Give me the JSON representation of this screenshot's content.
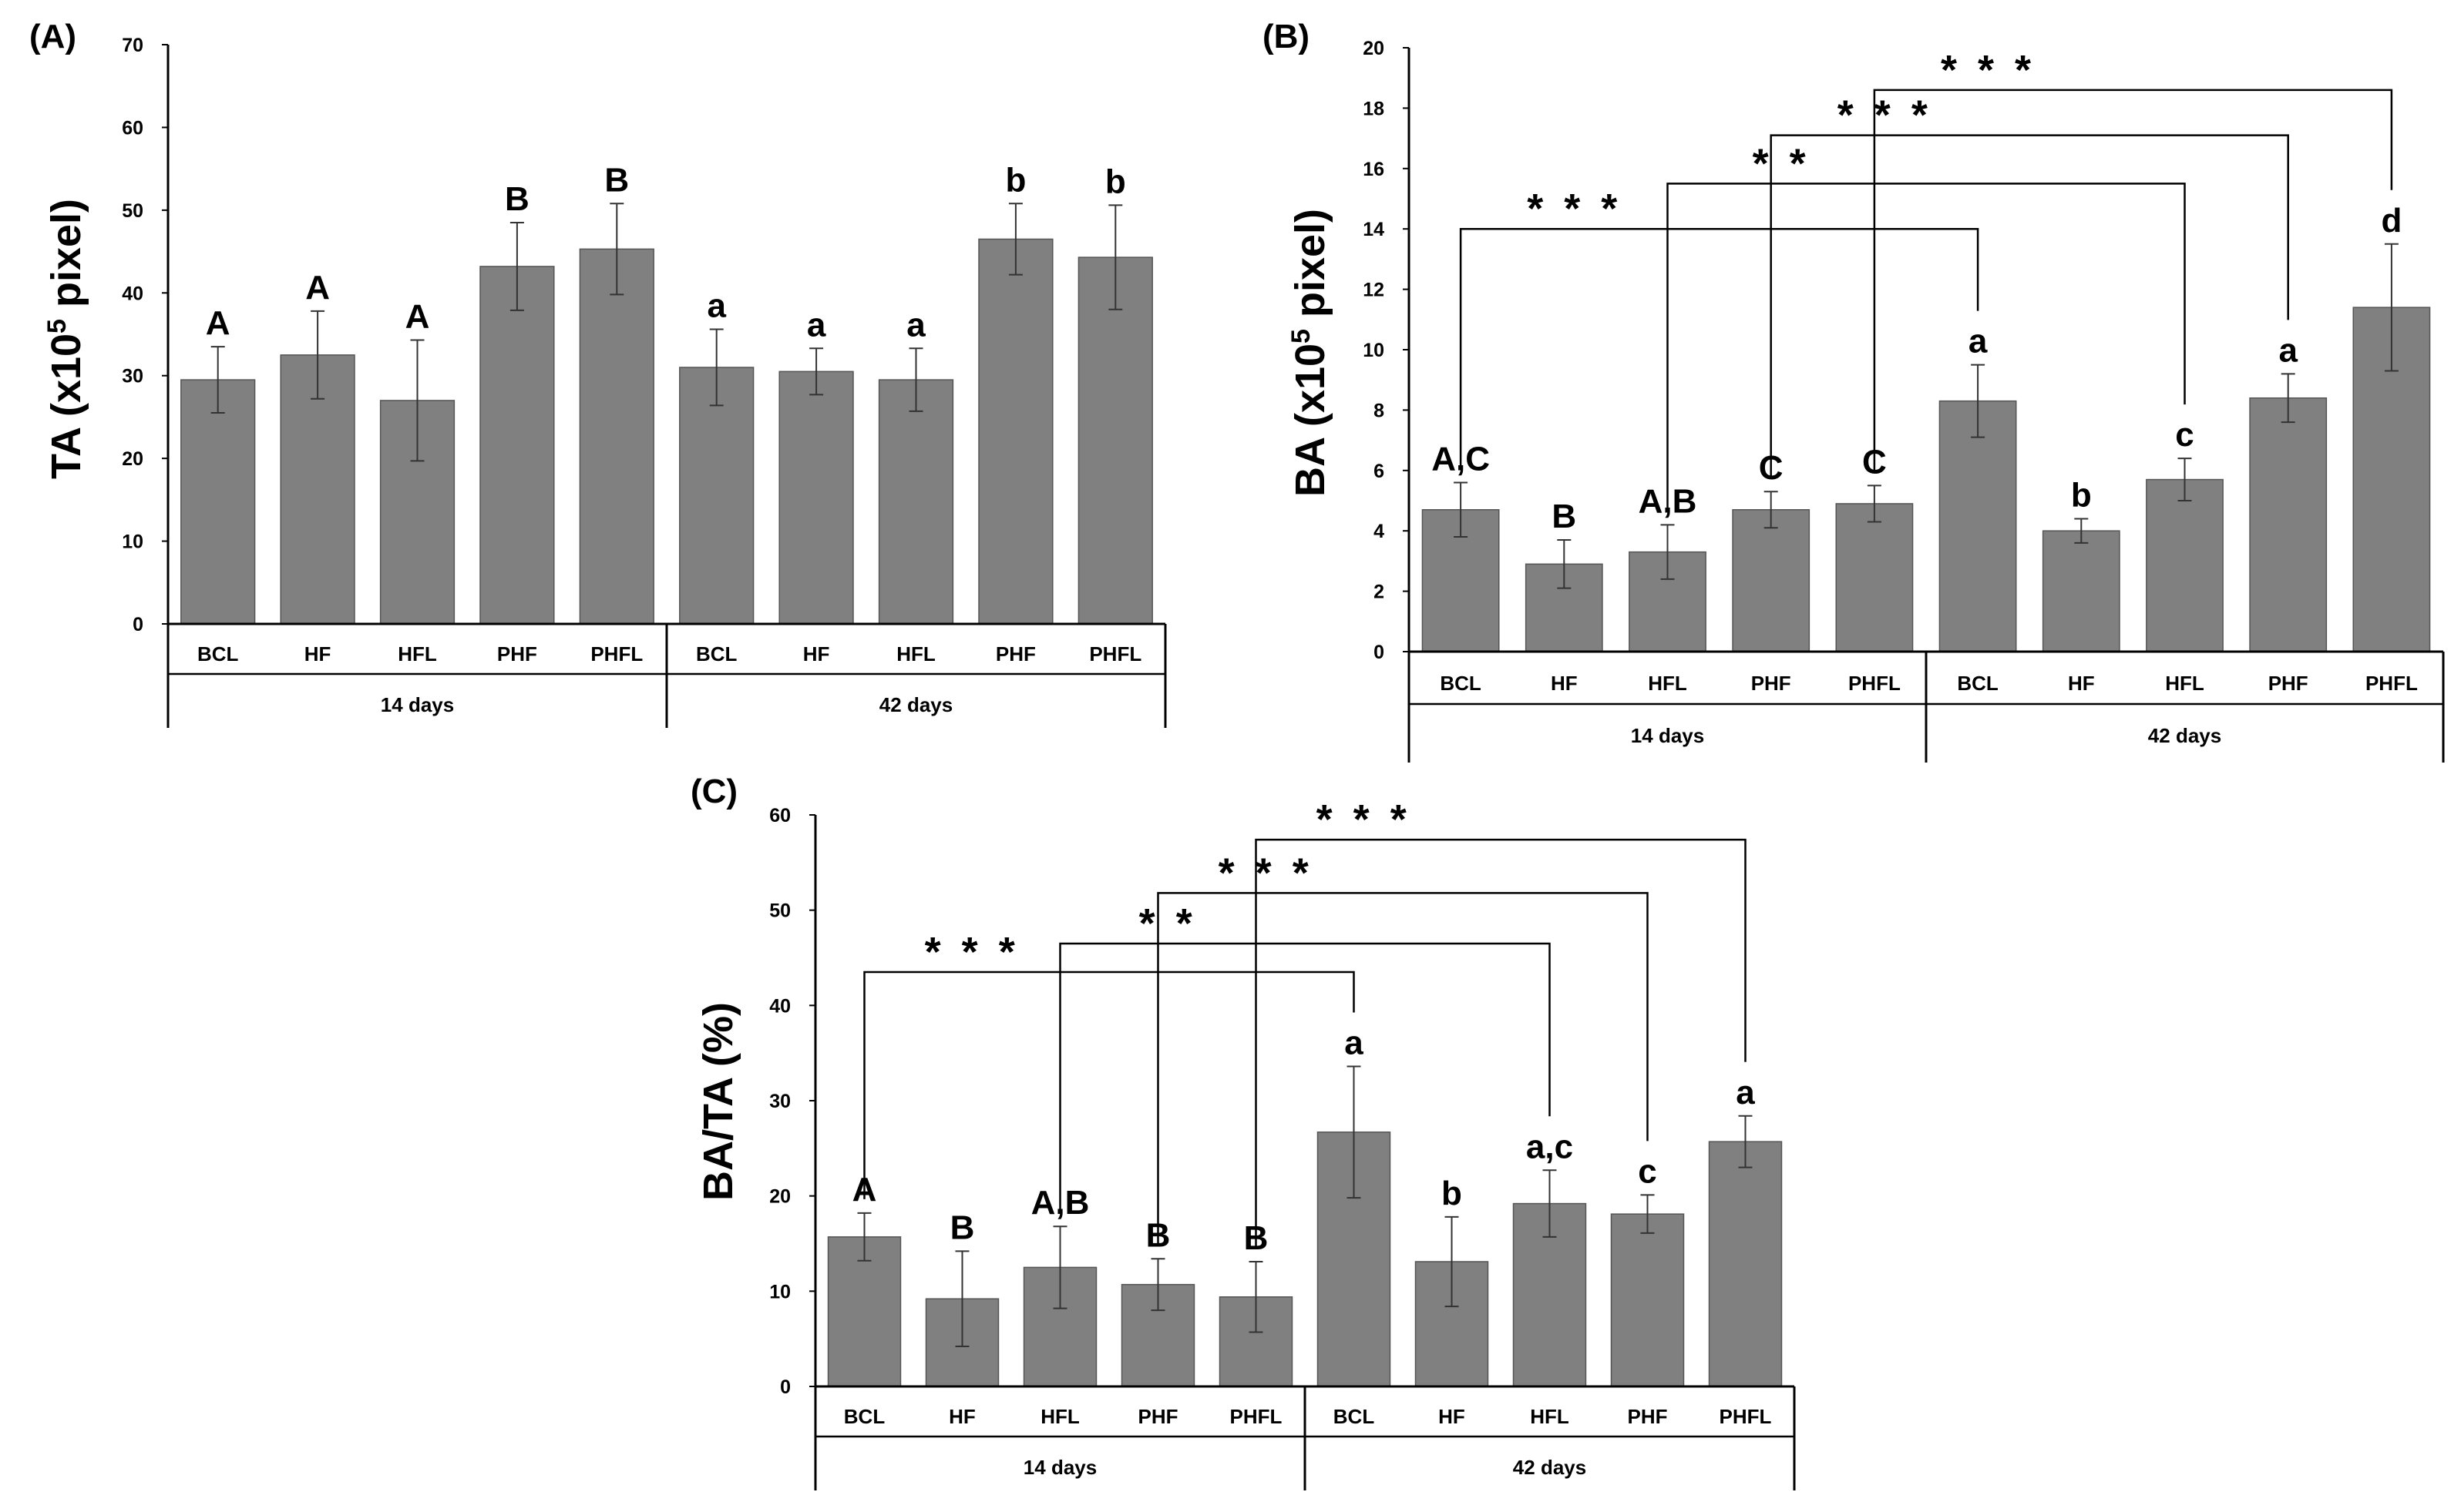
{
  "chart_data": [
    {
      "type": "bar",
      "panel": "(A)",
      "ylabel": "TA (x10",
      "ylabel_sup": "5",
      "ylabel_tail": " pixel)",
      "ylim": [
        0,
        70
      ],
      "yticks": [
        0,
        10,
        20,
        30,
        40,
        50,
        60,
        70
      ],
      "groups": [
        {
          "name": "14 days",
          "categories": [
            "BCL",
            "HF",
            "HFL",
            "PHF",
            "PHFL"
          ]
        },
        {
          "name": "42 days",
          "categories": [
            "BCL",
            "HF",
            "HFL",
            "PHF",
            "PHFL"
          ]
        }
      ],
      "values": [
        29.5,
        32.5,
        27,
        43.2,
        45.3,
        31,
        30.5,
        29.5,
        46.5,
        44.3
      ],
      "errors": [
        4,
        5.3,
        7.3,
        5.3,
        5.5,
        4.6,
        2.8,
        3.8,
        4.3,
        6.3
      ],
      "labels": [
        "A",
        "A",
        "A",
        "B",
        "B",
        "a",
        "a",
        "a",
        "b",
        "b"
      ],
      "brackets": [],
      "colors": {
        "bar": "#808080",
        "bar_edge": "#555555",
        "axis": "#000000"
      }
    },
    {
      "type": "bar",
      "panel": "(B)",
      "ylabel": "BA (x10",
      "ylabel_sup": "5",
      "ylabel_tail": " pixel)",
      "ylim": [
        0,
        20
      ],
      "yticks": [
        0,
        2,
        4,
        6,
        8,
        10,
        12,
        14,
        16,
        18,
        20
      ],
      "groups": [
        {
          "name": "14 days",
          "categories": [
            "BCL",
            "HF",
            "HFL",
            "PHF",
            "PHFL"
          ]
        },
        {
          "name": "42 days",
          "categories": [
            "BCL",
            "HF",
            "HFL",
            "PHF",
            "PHFL"
          ]
        }
      ],
      "values": [
        4.7,
        2.9,
        3.3,
        4.7,
        4.9,
        8.3,
        4.0,
        5.7,
        8.4,
        11.4
      ],
      "errors": [
        0.9,
        0.8,
        0.9,
        0.6,
        0.6,
        1.2,
        0.4,
        0.7,
        0.8,
        2.1
      ],
      "labels": [
        "A,C",
        "B",
        "A,B",
        "C",
        "C",
        "a",
        "b",
        "c",
        "a",
        "d"
      ],
      "brackets": [
        {
          "from": 0,
          "to": 5,
          "level": 14.0,
          "stars": "* * *"
        },
        {
          "from": 2,
          "to": 7,
          "level": 15.5,
          "stars": "* *"
        },
        {
          "from": 3,
          "to": 8,
          "level": 17.1,
          "stars": "* * *"
        },
        {
          "from": 4,
          "to": 9,
          "level": 18.6,
          "stars": "* * *"
        }
      ],
      "colors": {
        "bar": "#808080",
        "bar_edge": "#555555",
        "axis": "#000000"
      }
    },
    {
      "type": "bar",
      "panel": "(C)",
      "ylabel": "BA/TA (%)",
      "ylabel_sup": "",
      "ylabel_tail": "",
      "ylim": [
        0,
        60
      ],
      "yticks": [
        0,
        10,
        20,
        30,
        40,
        50,
        60
      ],
      "groups": [
        {
          "name": "14 days",
          "categories": [
            "BCL",
            "HF",
            "HFL",
            "PHF",
            "PHFL"
          ]
        },
        {
          "name": "42 days",
          "categories": [
            "BCL",
            "HF",
            "HFL",
            "PHF",
            "PHFL"
          ]
        }
      ],
      "values": [
        15.7,
        9.2,
        12.5,
        10.7,
        9.4,
        26.7,
        13.1,
        19.2,
        18.1,
        25.7
      ],
      "errors": [
        2.5,
        5.0,
        4.3,
        2.7,
        3.7,
        6.9,
        4.7,
        3.5,
        2.0,
        2.7
      ],
      "labels": [
        "A",
        "B",
        "A,B",
        "B",
        "B",
        "a",
        "b",
        "a,c",
        "c",
        "a"
      ],
      "brackets": [
        {
          "from": 0,
          "to": 5,
          "level": 43.5,
          "stars": "* * *"
        },
        {
          "from": 2,
          "to": 7,
          "level": 46.5,
          "stars": "* *"
        },
        {
          "from": 3,
          "to": 8,
          "level": 51.8,
          "stars": "* * *"
        },
        {
          "from": 4,
          "to": 9,
          "level": 57.4,
          "stars": "* * *"
        }
      ],
      "colors": {
        "bar": "#808080",
        "bar_edge": "#555555",
        "axis": "#000000"
      }
    }
  ]
}
